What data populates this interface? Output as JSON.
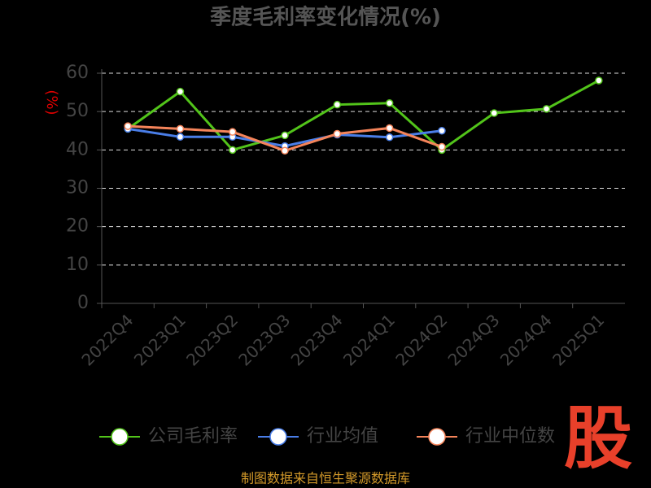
{
  "chart_data": {
    "type": "line",
    "title": "季度毛利率变化情况(%)",
    "y_label": "(%)",
    "categories": [
      "2022Q4",
      "2023Q1",
      "2023Q2",
      "2023Q3",
      "2023Q4",
      "2024Q1",
      "2024Q2",
      "2024Q3",
      "2024Q4",
      "2025Q1"
    ],
    "series": [
      {
        "name": "公司毛利率",
        "color": "#52c41a",
        "values": [
          45.5,
          55.2,
          40.0,
          43.8,
          51.8,
          52.2,
          40.0,
          49.6,
          50.7,
          58.1
        ]
      },
      {
        "name": "行业均值",
        "color": "#4a7ee8",
        "values": [
          45.5,
          43.4,
          43.4,
          41.0,
          44.0,
          43.3,
          45.0,
          null,
          null,
          null
        ]
      },
      {
        "name": "行业中位数",
        "color": "#f5845a",
        "values": [
          46.2,
          45.5,
          44.7,
          39.8,
          44.2,
          45.7,
          40.8,
          null,
          null,
          null
        ]
      }
    ],
    "ylim": [
      0,
      60
    ],
    "yticks": [
      0,
      10,
      20,
      30,
      40,
      50,
      60
    ],
    "grid": true,
    "source": "制图数据来自恒生聚源数据库",
    "logo": "股"
  }
}
